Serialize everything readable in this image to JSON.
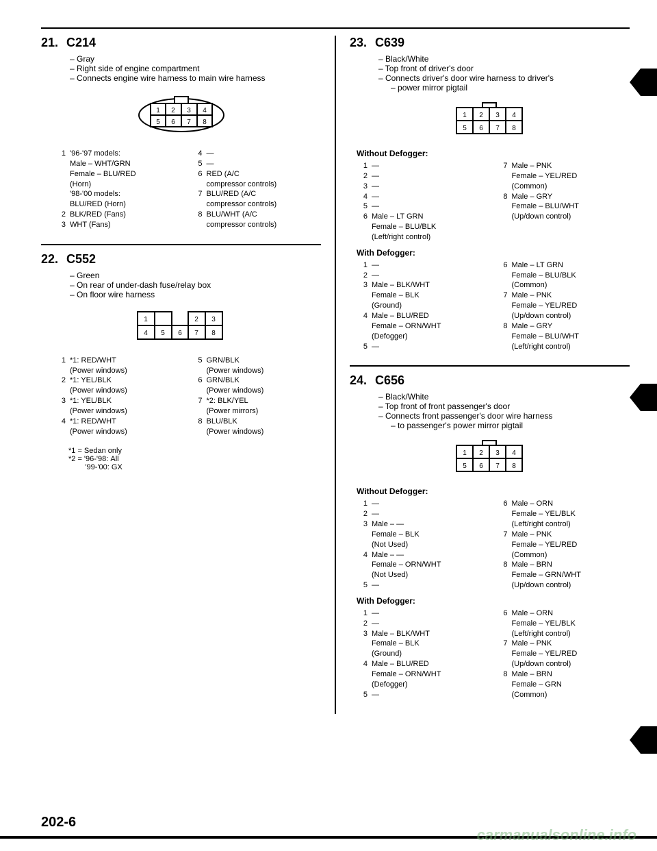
{
  "page_number": "202-6",
  "watermark": "carmanualsonline.info",
  "sections": [
    {
      "num": "21.",
      "id": "C214",
      "desc": [
        "Gray",
        "Right side of engine compartment",
        "Connects engine wire harness to main wire harness"
      ],
      "connector": "2x4_shell",
      "pin_groups": [
        {
          "heading": null,
          "cols": [
            [
              {
                "n": "1",
                "t": "'96-'97 models:"
              },
              {
                "sub": "Male – WHT/GRN"
              },
              {
                "sub": "Female – BLU/RED"
              },
              {
                "sub": "(Horn)"
              },
              {
                "sub": "'98-'00 models:"
              },
              {
                "sub": "BLU/RED (Horn)"
              },
              {
                "n": "2",
                "t": "BLK/RED (Fans)"
              },
              {
                "n": "3",
                "t": "WHT (Fans)"
              }
            ],
            [
              {
                "n": "4",
                "t": "—"
              },
              {
                "n": "5",
                "t": "—"
              },
              {
                "n": "6",
                "t": "RED (A/C"
              },
              {
                "sub": "compressor controls)"
              },
              {
                "n": "7",
                "t": "BLU/RED (A/C"
              },
              {
                "sub": "compressor controls)"
              },
              {
                "n": "8",
                "t": "BLU/WHT (A/C"
              },
              {
                "sub": "compressor controls)"
              }
            ]
          ]
        }
      ]
    },
    {
      "num": "22.",
      "id": "C552",
      "desc": [
        "Green",
        "On rear of under-dash fuse/relay box",
        "On floor wire harness"
      ],
      "connector": "2x4_offset",
      "pin_groups": [
        {
          "heading": null,
          "cols": [
            [
              {
                "n": "1",
                "t": "*1: RED/WHT"
              },
              {
                "sub": "(Power windows)"
              },
              {
                "n": "2",
                "t": "*1: YEL/BLK"
              },
              {
                "sub": "(Power windows)"
              },
              {
                "n": "3",
                "t": "*1: YEL/BLK"
              },
              {
                "sub": "(Power windows)"
              },
              {
                "n": "4",
                "t": "*1: RED/WHT"
              },
              {
                "sub": "(Power windows)"
              }
            ],
            [
              {
                "n": "5",
                "t": "GRN/BLK"
              },
              {
                "sub": "(Power windows)"
              },
              {
                "n": "6",
                "t": "GRN/BLK"
              },
              {
                "sub": "(Power windows)"
              },
              {
                "n": "7",
                "t": "*2: BLK/YEL"
              },
              {
                "sub": "(Power mirrors)"
              },
              {
                "n": "8",
                "t": "BLU/BLK"
              },
              {
                "sub": "(Power windows)"
              }
            ]
          ]
        }
      ],
      "footnotes": [
        "*1 = Sedan only",
        "*2 = '96-'98: All",
        "        '99-'00: GX"
      ]
    },
    {
      "num": "23.",
      "id": "C639",
      "desc": [
        "Black/White",
        "Top front of driver's door",
        "Connects driver's door wire harness to driver's"
      ],
      "desc_indent": [
        "power mirror pigtail"
      ],
      "connector": "2x4",
      "pin_groups": [
        {
          "heading": "Without Defogger:",
          "cols": [
            [
              {
                "n": "1",
                "t": "—"
              },
              {
                "n": "2",
                "t": "—"
              },
              {
                "n": "3",
                "t": "—"
              },
              {
                "n": "4",
                "t": "—"
              },
              {
                "n": "5",
                "t": "—"
              },
              {
                "n": "6",
                "t": "Male – LT GRN"
              },
              {
                "sub": "Female – BLU/BLK"
              },
              {
                "sub": "(Left/right control)"
              }
            ],
            [
              {
                "n": "7",
                "t": "Male – PNK"
              },
              {
                "sub": "Female – YEL/RED"
              },
              {
                "sub": "(Common)"
              },
              {
                "n": "8",
                "t": "Male – GRY"
              },
              {
                "sub": "Female – BLU/WHT"
              },
              {
                "sub": "(Up/down control)"
              }
            ]
          ]
        },
        {
          "heading": "With Defogger:",
          "cols": [
            [
              {
                "n": "1",
                "t": "—"
              },
              {
                "n": "2",
                "t": "—"
              },
              {
                "n": "3",
                "t": "Male – BLK/WHT"
              },
              {
                "sub": "Female – BLK"
              },
              {
                "sub": "(Ground)"
              },
              {
                "n": "4",
                "t": "Male – BLU/RED"
              },
              {
                "sub": "Female – ORN/WHT"
              },
              {
                "sub": "(Defogger)"
              },
              {
                "n": "5",
                "t": "—"
              }
            ],
            [
              {
                "n": "6",
                "t": "Male – LT GRN"
              },
              {
                "sub": "Female – BLU/BLK"
              },
              {
                "sub": "(Common)"
              },
              {
                "n": "7",
                "t": "Male – PNK"
              },
              {
                "sub": "Female – YEL/RED"
              },
              {
                "sub": "(Up/down control)"
              },
              {
                "n": "8",
                "t": "Male – GRY"
              },
              {
                "sub": "Female – BLU/WHT"
              },
              {
                "sub": "(Left/right control)"
              }
            ]
          ]
        }
      ]
    },
    {
      "num": "24.",
      "id": "C656",
      "desc": [
        "Black/White",
        "Top front of front passenger's door",
        "Connects front passenger's door wire harness"
      ],
      "desc_indent": [
        "to passenger's power mirror pigtail"
      ],
      "connector": "2x4",
      "pin_groups": [
        {
          "heading": "Without Defogger:",
          "cols": [
            [
              {
                "n": "1",
                "t": "—"
              },
              {
                "n": "2",
                "t": "—"
              },
              {
                "n": "3",
                "t": "Male – —"
              },
              {
                "sub": "Female – BLK"
              },
              {
                "sub": "(Not Used)"
              },
              {
                "n": "4",
                "t": "Male – —"
              },
              {
                "sub": "Female – ORN/WHT"
              },
              {
                "sub": "(Not Used)"
              },
              {
                "n": "5",
                "t": "—"
              }
            ],
            [
              {
                "n": "6",
                "t": "Male – ORN"
              },
              {
                "sub": "Female – YEL/BLK"
              },
              {
                "sub": "(Left/right control)"
              },
              {
                "n": "7",
                "t": "Male – PNK"
              },
              {
                "sub": "Female – YEL/RED"
              },
              {
                "sub": "(Common)"
              },
              {
                "n": "8",
                "t": "Male – BRN"
              },
              {
                "sub": "Female – GRN/WHT"
              },
              {
                "sub": "(Up/down control)"
              }
            ]
          ]
        },
        {
          "heading": "With Defogger:",
          "cols": [
            [
              {
                "n": "1",
                "t": "—"
              },
              {
                "n": "2",
                "t": "—"
              },
              {
                "n": "3",
                "t": "Male – BLK/WHT"
              },
              {
                "sub": "Female – BLK"
              },
              {
                "sub": "(Ground)"
              },
              {
                "n": "4",
                "t": "Male – BLU/RED"
              },
              {
                "sub": "Female – ORN/WHT"
              },
              {
                "sub": "(Defogger)"
              },
              {
                "n": "5",
                "t": "—"
              }
            ],
            [
              {
                "n": "6",
                "t": "Male – ORN"
              },
              {
                "sub": "Female – YEL/BLK"
              },
              {
                "sub": "(Left/right control)"
              },
              {
                "n": "7",
                "t": "Male – PNK"
              },
              {
                "sub": "Female – YEL/RED"
              },
              {
                "sub": "(Up/down control)"
              },
              {
                "n": "8",
                "t": "Male – BRN"
              },
              {
                "sub": "Female – GRN"
              },
              {
                "sub": "(Common)"
              }
            ]
          ]
        }
      ]
    }
  ]
}
